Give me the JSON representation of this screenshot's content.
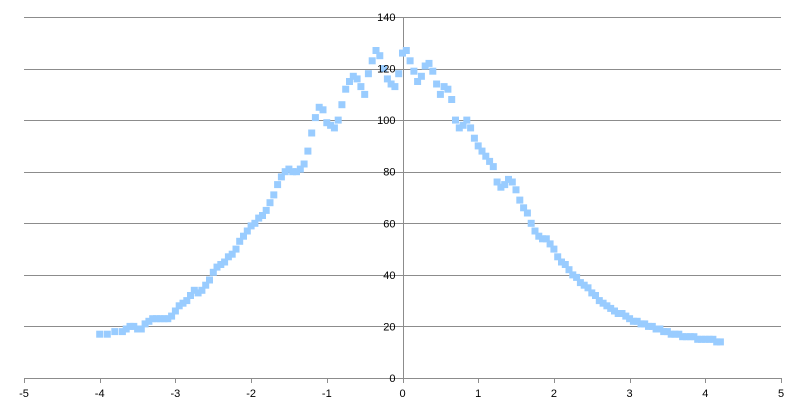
{
  "chart_data": {
    "type": "scatter",
    "title": "",
    "xlabel": "",
    "ylabel": "",
    "xlim": [
      -5,
      5
    ],
    "ylim": [
      0,
      140
    ],
    "x_ticks": [
      -5,
      -4,
      -3,
      -2,
      -1,
      0,
      1,
      2,
      3,
      4,
      5
    ],
    "y_ticks": [
      0,
      20,
      40,
      60,
      80,
      100,
      120,
      140
    ],
    "grid": "horizontal",
    "legend": "none",
    "marker": "square",
    "marker_color": "#99ccff",
    "series": [
      {
        "points": [
          [
            -4.0,
            17
          ],
          [
            -3.9,
            17
          ],
          [
            -3.8,
            18
          ],
          [
            -3.7,
            18
          ],
          [
            -3.65,
            19
          ],
          [
            -3.6,
            20
          ],
          [
            -3.55,
            20
          ],
          [
            -3.5,
            19
          ],
          [
            -3.45,
            19
          ],
          [
            -3.4,
            21
          ],
          [
            -3.35,
            22
          ],
          [
            -3.3,
            23
          ],
          [
            -3.25,
            23
          ],
          [
            -3.2,
            23
          ],
          [
            -3.15,
            23
          ],
          [
            -3.1,
            23
          ],
          [
            -3.05,
            24
          ],
          [
            -3.0,
            26
          ],
          [
            -2.95,
            28
          ],
          [
            -2.9,
            29
          ],
          [
            -2.85,
            30
          ],
          [
            -2.8,
            32
          ],
          [
            -2.75,
            34
          ],
          [
            -2.7,
            33
          ],
          [
            -2.65,
            34
          ],
          [
            -2.6,
            36
          ],
          [
            -2.55,
            38
          ],
          [
            -2.5,
            41
          ],
          [
            -2.45,
            43
          ],
          [
            -2.4,
            44
          ],
          [
            -2.35,
            45
          ],
          [
            -2.3,
            47
          ],
          [
            -2.25,
            48
          ],
          [
            -2.2,
            50
          ],
          [
            -2.15,
            53
          ],
          [
            -2.1,
            55
          ],
          [
            -2.05,
            57
          ],
          [
            -2.0,
            59
          ],
          [
            -1.95,
            60
          ],
          [
            -1.9,
            62
          ],
          [
            -1.85,
            63
          ],
          [
            -1.8,
            65
          ],
          [
            -1.75,
            68
          ],
          [
            -1.7,
            71
          ],
          [
            -1.65,
            75
          ],
          [
            -1.6,
            78
          ],
          [
            -1.55,
            80
          ],
          [
            -1.5,
            81
          ],
          [
            -1.45,
            80
          ],
          [
            -1.4,
            80
          ],
          [
            -1.35,
            81
          ],
          [
            -1.3,
            83
          ],
          [
            -1.25,
            88
          ],
          [
            -1.2,
            95
          ],
          [
            -1.15,
            101
          ],
          [
            -1.1,
            105
          ],
          [
            -1.05,
            104
          ],
          [
            -1.0,
            99
          ],
          [
            -0.95,
            98
          ],
          [
            -0.9,
            97
          ],
          [
            -0.85,
            100
          ],
          [
            -0.8,
            106
          ],
          [
            -0.75,
            112
          ],
          [
            -0.7,
            115
          ],
          [
            -0.65,
            117
          ],
          [
            -0.6,
            116
          ],
          [
            -0.55,
            113
          ],
          [
            -0.5,
            110
          ],
          [
            -0.45,
            118
          ],
          [
            -0.4,
            123
          ],
          [
            -0.35,
            127
          ],
          [
            -0.3,
            125
          ],
          [
            -0.25,
            120
          ],
          [
            -0.2,
            116
          ],
          [
            -0.15,
            114
          ],
          [
            -0.1,
            113
          ],
          [
            -0.05,
            118
          ],
          [
            0.0,
            126
          ],
          [
            0.05,
            127
          ],
          [
            0.1,
            123
          ],
          [
            0.15,
            119
          ],
          [
            0.2,
            115
          ],
          [
            0.25,
            117
          ],
          [
            0.3,
            121
          ],
          [
            0.35,
            122
          ],
          [
            0.4,
            119
          ],
          [
            0.45,
            114
          ],
          [
            0.5,
            110
          ],
          [
            0.55,
            113
          ],
          [
            0.6,
            112
          ],
          [
            0.65,
            108
          ],
          [
            0.7,
            100
          ],
          [
            0.75,
            97
          ],
          [
            0.8,
            98
          ],
          [
            0.85,
            100
          ],
          [
            0.9,
            97
          ],
          [
            0.95,
            93
          ],
          [
            1.0,
            90
          ],
          [
            1.05,
            88
          ],
          [
            1.1,
            86
          ],
          [
            1.15,
            84
          ],
          [
            1.2,
            82
          ],
          [
            1.25,
            76
          ],
          [
            1.3,
            74
          ],
          [
            1.35,
            75
          ],
          [
            1.4,
            77
          ],
          [
            1.45,
            76
          ],
          [
            1.5,
            73
          ],
          [
            1.55,
            69
          ],
          [
            1.6,
            66
          ],
          [
            1.65,
            64
          ],
          [
            1.7,
            60
          ],
          [
            1.75,
            57
          ],
          [
            1.8,
            55
          ],
          [
            1.85,
            54
          ],
          [
            1.9,
            54
          ],
          [
            1.95,
            52
          ],
          [
            2.0,
            50
          ],
          [
            2.05,
            47
          ],
          [
            2.1,
            45
          ],
          [
            2.15,
            44
          ],
          [
            2.2,
            42
          ],
          [
            2.25,
            40
          ],
          [
            2.3,
            39
          ],
          [
            2.35,
            37
          ],
          [
            2.4,
            36
          ],
          [
            2.45,
            35
          ],
          [
            2.5,
            33
          ],
          [
            2.55,
            32
          ],
          [
            2.6,
            30
          ],
          [
            2.65,
            29
          ],
          [
            2.7,
            28
          ],
          [
            2.75,
            27
          ],
          [
            2.8,
            26
          ],
          [
            2.85,
            25
          ],
          [
            2.9,
            25
          ],
          [
            2.95,
            24
          ],
          [
            3.0,
            23
          ],
          [
            3.05,
            22
          ],
          [
            3.1,
            22
          ],
          [
            3.15,
            21
          ],
          [
            3.2,
            21
          ],
          [
            3.25,
            20
          ],
          [
            3.3,
            20
          ],
          [
            3.35,
            19
          ],
          [
            3.4,
            19
          ],
          [
            3.45,
            18
          ],
          [
            3.5,
            18
          ],
          [
            3.55,
            17
          ],
          [
            3.6,
            17
          ],
          [
            3.65,
            17
          ],
          [
            3.7,
            16
          ],
          [
            3.75,
            16
          ],
          [
            3.8,
            16
          ],
          [
            3.85,
            16
          ],
          [
            3.9,
            15
          ],
          [
            3.95,
            15
          ],
          [
            4.0,
            15
          ],
          [
            4.05,
            15
          ],
          [
            4.1,
            15
          ],
          [
            4.15,
            14
          ],
          [
            4.2,
            14
          ]
        ]
      }
    ]
  }
}
